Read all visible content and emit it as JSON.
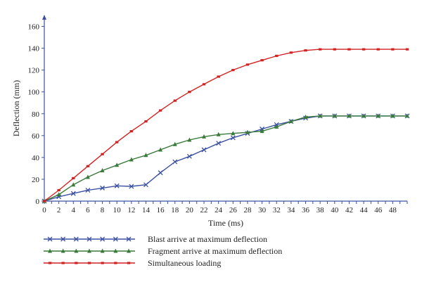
{
  "chart_data": {
    "type": "line",
    "xlabel": "Time (ms)",
    "ylabel": "Deflection (mm)",
    "xlim": [
      0,
      50
    ],
    "ylim": [
      0,
      170
    ],
    "x_ticks": [
      "0",
      "2",
      "4",
      "6",
      "8",
      "10",
      "12",
      "14",
      "16",
      "18",
      "20",
      "22",
      "24",
      "26",
      "28",
      "30",
      "32",
      "34",
      "36",
      "38",
      "40",
      "42",
      "44",
      "46",
      "48"
    ],
    "y_ticks": [
      "0",
      "20",
      "40",
      "60",
      "80",
      "100",
      "120",
      "140",
      "160"
    ],
    "grid": false,
    "legend_position": "bottom",
    "series": [
      {
        "name": "Blast arrive at maximum deflection",
        "color": "#3b50a3",
        "marker": "x",
        "x": [
          0,
          2,
          4,
          6,
          8,
          10,
          12,
          14,
          16,
          18,
          20,
          22,
          24,
          26,
          28,
          30,
          32,
          34,
          36,
          38,
          40,
          42,
          44,
          46,
          48,
          50
        ],
        "y": [
          0,
          4,
          7,
          10,
          12,
          14,
          13.5,
          15,
          26,
          36,
          41,
          47,
          53,
          58,
          62,
          66,
          70,
          73,
          76,
          78,
          78,
          78,
          78,
          78,
          78,
          78
        ]
      },
      {
        "name": "Fragment arrive at maximum deflection",
        "color": "#3a7a3a",
        "marker": "triangle",
        "x": [
          0,
          2,
          4,
          6,
          8,
          10,
          12,
          14,
          16,
          18,
          20,
          22,
          24,
          26,
          28,
          30,
          32,
          34,
          36,
          38,
          40,
          42,
          44,
          46,
          48,
          50
        ],
        "y": [
          0,
          6,
          15,
          22,
          28,
          33,
          38,
          42,
          47,
          52,
          56,
          59,
          61,
          62,
          63,
          64,
          68,
          73,
          77,
          78,
          78,
          78,
          78,
          78,
          78,
          78
        ]
      },
      {
        "name": "Simultaneous loading",
        "color": "#d22222",
        "marker": "square",
        "x": [
          0,
          2,
          4,
          6,
          8,
          10,
          12,
          14,
          16,
          18,
          20,
          22,
          24,
          26,
          28,
          30,
          32,
          34,
          36,
          38,
          40,
          42,
          44,
          46,
          48,
          50
        ],
        "y": [
          0,
          10,
          21,
          32,
          43,
          54,
          64,
          73,
          83,
          92,
          100,
          107,
          114,
          120,
          125,
          129,
          133,
          136,
          138,
          139,
          139,
          139,
          139,
          139,
          139,
          139
        ]
      }
    ]
  }
}
